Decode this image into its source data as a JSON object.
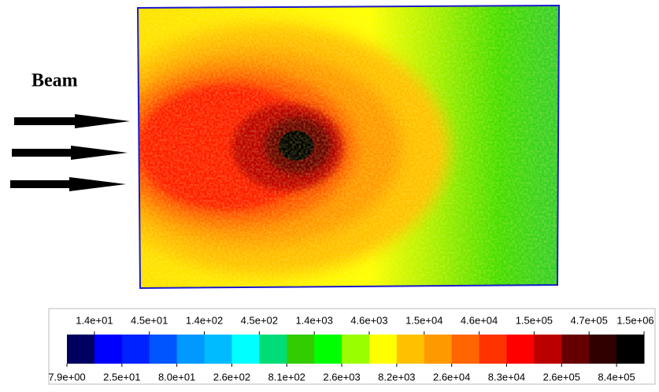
{
  "chart_data": {
    "type": "heatmap",
    "annotation": "Beam",
    "colorbar": {
      "ticks": [
        {
          "value": 7.9,
          "label": "7.9e+00"
        },
        {
          "value": 14,
          "label": "1.4e+01"
        },
        {
          "value": 25,
          "label": "2.5e+01"
        },
        {
          "value": 45,
          "label": "4.5e+01"
        },
        {
          "value": 80,
          "label": "8.0e+01"
        },
        {
          "value": 140,
          "label": "1.4e+02"
        },
        {
          "value": 260,
          "label": "2.6e+02"
        },
        {
          "value": 450,
          "label": "4.5e+02"
        },
        {
          "value": 810,
          "label": "8.1e+02"
        },
        {
          "value": 1400,
          "label": "1.4e+03"
        },
        {
          "value": 2600,
          "label": "2.6e+03"
        },
        {
          "value": 4600,
          "label": "4.6e+03"
        },
        {
          "value": 8200,
          "label": "8.2e+03"
        },
        {
          "value": 15000,
          "label": "1.5e+04"
        },
        {
          "value": 26000,
          "label": "2.6e+04"
        },
        {
          "value": 46000,
          "label": "4.6e+04"
        },
        {
          "value": 83000,
          "label": "8.3e+04"
        },
        {
          "value": 150000,
          "label": "1.5e+05"
        },
        {
          "value": 260000,
          "label": "2.6e+05"
        },
        {
          "value": 470000,
          "label": "4.7e+05"
        },
        {
          "value": 840000,
          "label": "8.4e+05"
        },
        {
          "value": 1500000,
          "label": "1.5e+06"
        }
      ],
      "colors": [
        "#000060",
        "#0000ff",
        "#0022ff",
        "#0055ff",
        "#0099ff",
        "#00bbff",
        "#00ffff",
        "#00dd77",
        "#33cc00",
        "#00ff00",
        "#99ff00",
        "#ffff00",
        "#ffc000",
        "#ff9900",
        "#ff6600",
        "#ff3300",
        "#ff0000",
        "#bb0000",
        "#660000",
        "#300000",
        "#000000"
      ],
      "log": true
    }
  }
}
